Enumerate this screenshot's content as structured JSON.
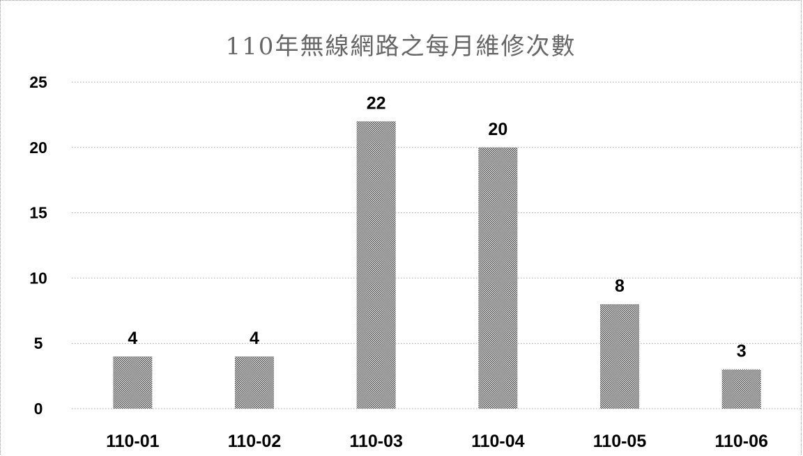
{
  "chart_data": {
    "type": "bar",
    "title": "110年無線網路之每月維修次數",
    "xlabel": "",
    "ylabel": "",
    "categories": [
      "110-01",
      "110-02",
      "110-03",
      "110-04",
      "110-05",
      "110-06"
    ],
    "values": [
      4,
      4,
      22,
      20,
      8,
      3
    ],
    "ylim": [
      0,
      25
    ],
    "yticks": [
      0,
      5,
      10,
      15,
      20,
      25
    ],
    "grid": true,
    "legend": "none",
    "bar_fill": "stippled-gray",
    "colors": {
      "bar_dot": "#3a3a3a",
      "grid": "#a6a6a6",
      "text": "#000000",
      "title": "#666666"
    }
  }
}
